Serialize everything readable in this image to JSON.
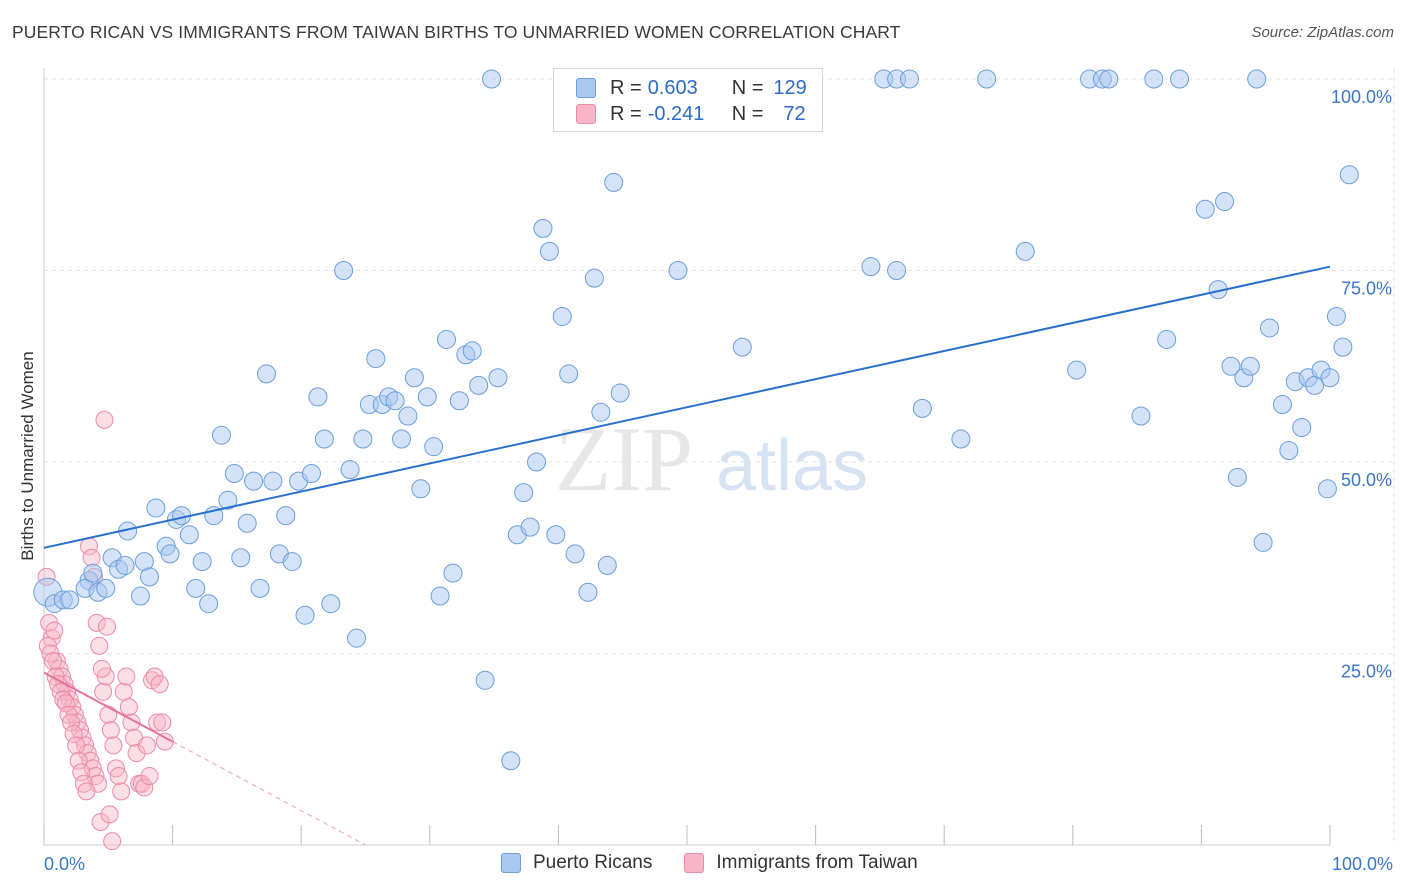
{
  "title": "PUERTO RICAN VS IMMIGRANTS FROM TAIWAN BIRTHS TO UNMARRIED WOMEN CORRELATION CHART",
  "source": "Source: ZipAtlas.com",
  "watermark": {
    "zip": "ZIP",
    "atlas": "atlas"
  },
  "legend": {
    "series1": {
      "r_label": "R =",
      "r_value": "0.603",
      "n_label": "N =",
      "n_value": "129"
    },
    "series2": {
      "r_label": "R =",
      "r_value": "-0.241",
      "n_label": "N =",
      "n_value": "72"
    }
  },
  "chart_data": {
    "type": "scatter",
    "title": "PUERTO RICAN VS IMMIGRANTS FROM TAIWAN BIRTHS TO UNMARRIED WOMEN CORRELATION CHART",
    "xlabel": "",
    "ylabel": "Births to Unmarried Women",
    "xlim": [
      0,
      100
    ],
    "ylim": [
      0,
      100
    ],
    "x_tick_labels": [
      "0.0%",
      "100.0%"
    ],
    "y_tick_labels": [
      "25.0%",
      "50.0%",
      "75.0%",
      "100.0%"
    ],
    "y_ticks": [
      25,
      50,
      75,
      100
    ],
    "colors": {
      "blue_fill": "#a9c7ef",
      "blue_stroke": "#6b9edc",
      "blue_line": "#2a6fcc",
      "pink_fill": "#f6b6c8",
      "pink_stroke": "#ec8aa8",
      "pink_line": "#e8729a"
    },
    "series": [
      {
        "name": "Puerto Ricans",
        "trend": {
          "x": [
            0,
            100
          ],
          "y": [
            38.8,
            75.5
          ]
        },
        "points": [
          [
            0.3,
            33
          ],
          [
            0.8,
            31.5
          ],
          [
            1.5,
            32
          ],
          [
            2,
            32
          ],
          [
            3.5,
            34.5
          ],
          [
            3.2,
            33.5
          ],
          [
            3.8,
            35.5
          ],
          [
            4.2,
            33
          ],
          [
            4.8,
            33.5
          ],
          [
            5.3,
            37.5
          ],
          [
            5.8,
            36
          ],
          [
            6.5,
            41
          ],
          [
            6.3,
            36.5
          ],
          [
            7.5,
            32.5
          ],
          [
            7.8,
            37
          ],
          [
            8.2,
            35
          ],
          [
            8.7,
            44
          ],
          [
            9.5,
            39
          ],
          [
            9.8,
            38
          ],
          [
            10.3,
            42.5
          ],
          [
            10.7,
            43
          ],
          [
            11.3,
            40.5
          ],
          [
            11.8,
            33.5
          ],
          [
            12.3,
            37
          ],
          [
            12.8,
            31.5
          ],
          [
            13.2,
            43
          ],
          [
            13.8,
            53.5
          ],
          [
            14.3,
            45
          ],
          [
            14.8,
            48.5
          ],
          [
            15.3,
            37.5
          ],
          [
            15.8,
            42
          ],
          [
            16.3,
            47.5
          ],
          [
            16.8,
            33.5
          ],
          [
            17.3,
            61.5
          ],
          [
            17.8,
            47.5
          ],
          [
            18.3,
            38
          ],
          [
            18.8,
            43
          ],
          [
            19.3,
            37
          ],
          [
            19.8,
            47.5
          ],
          [
            20.3,
            30
          ],
          [
            20.8,
            48.5
          ],
          [
            21.3,
            58.5
          ],
          [
            21.8,
            53
          ],
          [
            22.3,
            31.5
          ],
          [
            23.3,
            75
          ],
          [
            23.8,
            49
          ],
          [
            24.3,
            27
          ],
          [
            24.8,
            53
          ],
          [
            25.3,
            57.5
          ],
          [
            25.8,
            63.5
          ],
          [
            26.3,
            57.5
          ],
          [
            26.8,
            58.5
          ],
          [
            27.3,
            58
          ],
          [
            27.8,
            53
          ],
          [
            28.3,
            56
          ],
          [
            28.8,
            61
          ],
          [
            29.3,
            46.5
          ],
          [
            29.8,
            58.5
          ],
          [
            30.3,
            52
          ],
          [
            30.8,
            32.5
          ],
          [
            31.3,
            66
          ],
          [
            31.8,
            35.5
          ],
          [
            32.3,
            58
          ],
          [
            32.8,
            64
          ],
          [
            33.3,
            64.5
          ],
          [
            33.8,
            60
          ],
          [
            34.3,
            21.5
          ],
          [
            34.8,
            100
          ],
          [
            35.3,
            61
          ],
          [
            36.3,
            11
          ],
          [
            36.8,
            40.5
          ],
          [
            37.3,
            46
          ],
          [
            37.8,
            41.5
          ],
          [
            38.3,
            50
          ],
          [
            38.8,
            80.5
          ],
          [
            39.3,
            77.5
          ],
          [
            39.8,
            40.5
          ],
          [
            40.3,
            69
          ],
          [
            40.8,
            61.5
          ],
          [
            41.3,
            38
          ],
          [
            42.3,
            33
          ],
          [
            42.8,
            74
          ],
          [
            43.3,
            56.5
          ],
          [
            43.8,
            36.5
          ],
          [
            44.3,
            86.5
          ],
          [
            44.8,
            59
          ],
          [
            49.3,
            75
          ],
          [
            54.3,
            65
          ],
          [
            64.3,
            75.5
          ],
          [
            65.3,
            100
          ],
          [
            66.3,
            75
          ],
          [
            66.3,
            100
          ],
          [
            67.3,
            100
          ],
          [
            68.3,
            57
          ],
          [
            71.3,
            53
          ],
          [
            73.3,
            100
          ],
          [
            76.3,
            77.5
          ],
          [
            80.3,
            62
          ],
          [
            81.3,
            100
          ],
          [
            82.3,
            100
          ],
          [
            82.8,
            100
          ],
          [
            85.3,
            56
          ],
          [
            86.3,
            100
          ],
          [
            87.3,
            66
          ],
          [
            88.3,
            100
          ],
          [
            90.3,
            83
          ],
          [
            91.3,
            72.5
          ],
          [
            91.8,
            84
          ],
          [
            92.3,
            62.5
          ],
          [
            92.8,
            48
          ],
          [
            93.3,
            61
          ],
          [
            93.8,
            62.5
          ],
          [
            94.3,
            100
          ],
          [
            94.8,
            39.5
          ],
          [
            95.3,
            67.5
          ],
          [
            96.3,
            57.5
          ],
          [
            96.8,
            51.5
          ],
          [
            97.3,
            60.5
          ],
          [
            97.8,
            54.5
          ],
          [
            98.3,
            61
          ],
          [
            98.8,
            60
          ],
          [
            99.3,
            62
          ],
          [
            99.8,
            46.5
          ],
          [
            100,
            61
          ],
          [
            100.5,
            69
          ],
          [
            101,
            65
          ],
          [
            101.5,
            87.5
          ]
        ]
      },
      {
        "name": "Immigrants from Taiwan",
        "trend": {
          "x": [
            0,
            10
          ],
          "y": [
            22.5,
            13.5
          ]
        },
        "trend_dashed": {
          "x": [
            10,
            25
          ],
          "y": [
            13.5,
            0
          ]
        },
        "points": [
          [
            0.2,
            35
          ],
          [
            0.4,
            29
          ],
          [
            0.6,
            27
          ],
          [
            0.8,
            28
          ],
          [
            1,
            24
          ],
          [
            1.2,
            23
          ],
          [
            1.4,
            22
          ],
          [
            1.6,
            21
          ],
          [
            1.8,
            20
          ],
          [
            2,
            19
          ],
          [
            2.2,
            18
          ],
          [
            2.4,
            17
          ],
          [
            2.6,
            16
          ],
          [
            2.8,
            15
          ],
          [
            3,
            14
          ],
          [
            3.2,
            13
          ],
          [
            3.4,
            12
          ],
          [
            3.6,
            11
          ],
          [
            3.8,
            10
          ],
          [
            4,
            9
          ],
          [
            4.2,
            8
          ],
          [
            4.4,
            3
          ],
          [
            4.6,
            20
          ],
          [
            4.8,
            22
          ],
          [
            5,
            17
          ],
          [
            5.2,
            15
          ],
          [
            5.4,
            13
          ],
          [
            5.6,
            10
          ],
          [
            5.8,
            9
          ],
          [
            6,
            7
          ],
          [
            6.2,
            20
          ],
          [
            6.4,
            22
          ],
          [
            6.6,
            18
          ],
          [
            6.8,
            16
          ],
          [
            7,
            14
          ],
          [
            7.2,
            12
          ],
          [
            7.4,
            8
          ],
          [
            7.6,
            8
          ],
          [
            7.8,
            7.5
          ],
          [
            8,
            13
          ],
          [
            8.2,
            9
          ],
          [
            8.4,
            21.5
          ],
          [
            8.6,
            22
          ],
          [
            8.8,
            16
          ],
          [
            9,
            21
          ],
          [
            9.2,
            16
          ],
          [
            9.4,
            13.5
          ],
          [
            0.3,
            26
          ],
          [
            0.5,
            25
          ],
          [
            0.7,
            24
          ],
          [
            0.9,
            22
          ],
          [
            1.1,
            21
          ],
          [
            1.3,
            20
          ],
          [
            1.5,
            19
          ],
          [
            1.7,
            18.5
          ],
          [
            1.9,
            17
          ],
          [
            2.1,
            16
          ],
          [
            2.3,
            14.5
          ],
          [
            2.5,
            13
          ],
          [
            2.7,
            11
          ],
          [
            2.9,
            9.5
          ],
          [
            3.1,
            8
          ],
          [
            3.3,
            7
          ],
          [
            3.5,
            39
          ],
          [
            3.7,
            37.5
          ],
          [
            3.9,
            35
          ],
          [
            4.1,
            29
          ],
          [
            4.3,
            26
          ],
          [
            4.5,
            23
          ],
          [
            4.7,
            55.5
          ],
          [
            4.9,
            28.5
          ],
          [
            5.1,
            4
          ],
          [
            5.3,
            0.5
          ]
        ]
      }
    ]
  },
  "bottom_legend": {
    "series1": "Puerto Ricans",
    "series2": "Immigrants from Taiwan"
  }
}
